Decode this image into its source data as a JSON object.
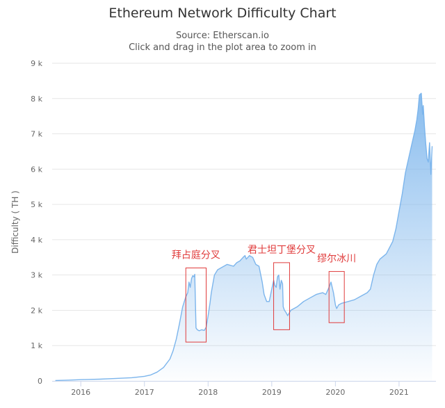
{
  "chart_data": {
    "type": "area",
    "title": "Ethereum Network Difficulty Chart",
    "subtitle_lines": [
      "Source: Etherscan.io",
      "Click and drag in the plot area to zoom in"
    ],
    "ylabel": "Difficulty ( TH )",
    "xlabel": "",
    "ylim": [
      0,
      9000
    ],
    "xlim": [
      2015.55,
      2021.58
    ],
    "grid": true,
    "legend": "none",
    "y_ticks": [
      0,
      1000,
      2000,
      3000,
      4000,
      5000,
      6000,
      7000,
      8000,
      9000
    ],
    "y_tick_labels": [
      "0",
      "1 k",
      "2 k",
      "3 k",
      "4 k",
      "5 k",
      "6 k",
      "7 k",
      "8 k",
      "9 k"
    ],
    "x_ticks": [
      2016,
      2017,
      2018,
      2019,
      2020,
      2021
    ],
    "x_tick_labels": [
      "2016",
      "2017",
      "2018",
      "2019",
      "2020",
      "2021"
    ],
    "colors": {
      "line": "#7cb5ec",
      "fill": "#7cb5ec",
      "annotation": "#e03b3b",
      "grid": "#e6e6e6",
      "axis": "#ccd6eb"
    },
    "series": [
      {
        "x": [
          2015.6,
          2015.8,
          2016.0,
          2016.3,
          2016.5,
          2016.8,
          2017.0,
          2017.1,
          2017.2,
          2017.3,
          2017.4,
          2017.45,
          2017.5,
          2017.55,
          2017.6,
          2017.65,
          2017.68,
          2017.7,
          2017.72,
          2017.74,
          2017.76,
          2017.78,
          2017.79,
          2017.81,
          2017.83,
          2017.86,
          2017.9,
          2017.94,
          2017.97,
          2018.0,
          2018.03,
          2018.05,
          2018.08,
          2018.1,
          2018.15,
          2018.2,
          2018.3,
          2018.4,
          2018.45,
          2018.5,
          2018.55,
          2018.58,
          2018.6,
          2018.65,
          2018.7,
          2018.75,
          2018.8,
          2018.85,
          2018.88,
          2018.92,
          2018.96,
          2019.0,
          2019.03,
          2019.05,
          2019.07,
          2019.09,
          2019.11,
          2019.13,
          2019.15,
          2019.17,
          2019.18,
          2019.2,
          2019.22,
          2019.25,
          2019.3,
          2019.4,
          2019.5,
          2019.6,
          2019.7,
          2019.8,
          2019.85,
          2019.9,
          2019.93,
          2019.95,
          2019.97,
          2020.0,
          2020.02,
          2020.05,
          2020.1,
          2020.2,
          2020.3,
          2020.4,
          2020.5,
          2020.55,
          2020.6,
          2020.65,
          2020.7,
          2020.8,
          2020.9,
          2020.95,
          2021.0,
          2021.05,
          2021.1,
          2021.15,
          2021.2,
          2021.25,
          2021.28,
          2021.3,
          2021.32,
          2021.35,
          2021.37,
          2021.38,
          2021.4,
          2021.42,
          2021.44,
          2021.46,
          2021.48,
          2021.5,
          2021.52
        ],
        "values": [
          12,
          22,
          35,
          50,
          65,
          90,
          130,
          170,
          250,
          380,
          620,
          850,
          1180,
          1620,
          2100,
          2380,
          2500,
          2800,
          2650,
          2900,
          2980,
          2950,
          3020,
          1500,
          1450,
          1420,
          1450,
          1430,
          1520,
          1850,
          2200,
          2500,
          2800,
          3000,
          3150,
          3200,
          3300,
          3250,
          3350,
          3400,
          3500,
          3550,
          3450,
          3550,
          3500,
          3300,
          3250,
          2800,
          2450,
          2250,
          2250,
          2600,
          2850,
          2700,
          2650,
          2950,
          3000,
          2600,
          2850,
          2750,
          2100,
          2000,
          1950,
          1850,
          2000,
          2100,
          2250,
          2350,
          2450,
          2500,
          2450,
          2650,
          2800,
          2650,
          2500,
          2150,
          2050,
          2150,
          2200,
          2250,
          2300,
          2400,
          2500,
          2600,
          3000,
          3300,
          3450,
          3600,
          3950,
          4300,
          4800,
          5300,
          5900,
          6300,
          6700,
          7100,
          7400,
          7700,
          8100,
          8150,
          7550,
          7800,
          7200,
          6700,
          6300,
          6200,
          6750,
          5850,
          6650
        ]
      }
    ],
    "annotations": [
      {
        "text": "拜占庭分叉",
        "box_x": [
          2017.65,
          2017.97
        ],
        "box_y": [
          1100,
          3200
        ]
      },
      {
        "text": "君士坦丁堡分叉",
        "box_x": [
          2019.03,
          2019.28
        ],
        "box_y": [
          1450,
          3350
        ]
      },
      {
        "text": "缪尔冰川",
        "box_x": [
          2019.9,
          2020.14
        ],
        "box_y": [
          1650,
          3100
        ]
      }
    ]
  }
}
